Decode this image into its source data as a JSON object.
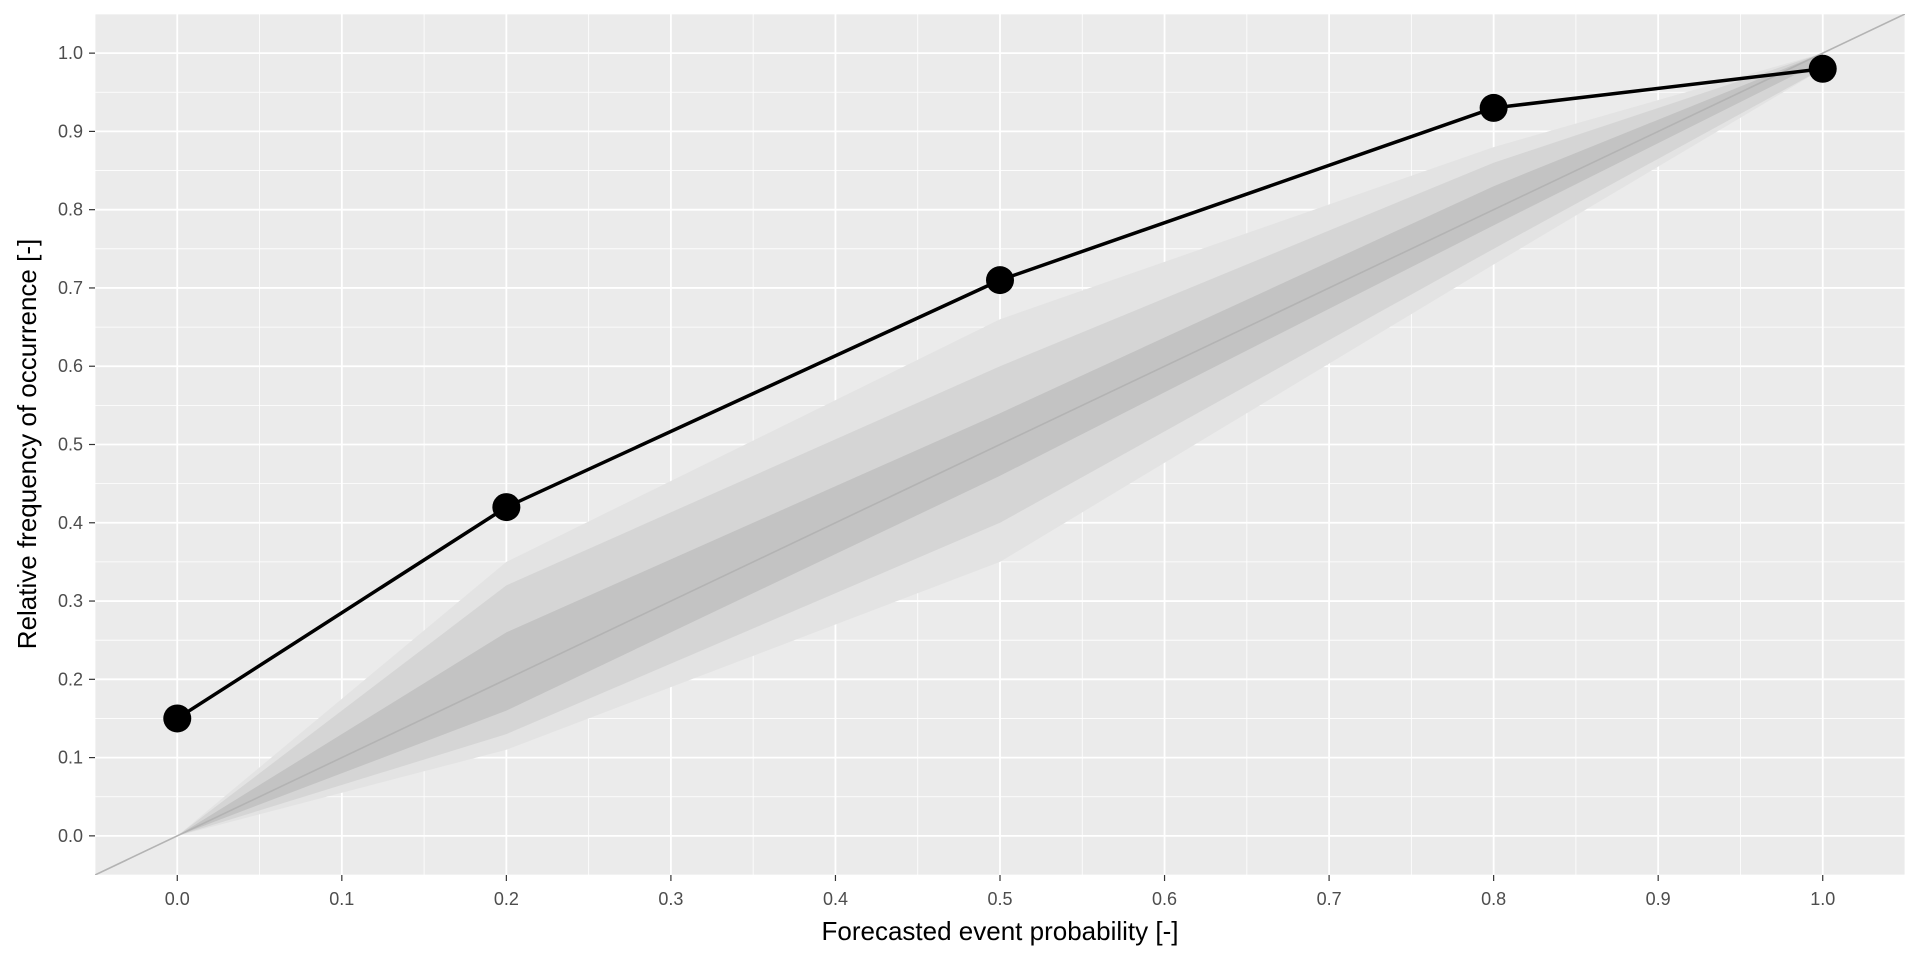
{
  "chart_data": {
    "type": "line",
    "title": "",
    "xlabel": "Forecasted event probability [-]",
    "ylabel": "Relative frequency of occurrence [-]",
    "xlim": [
      -0.05,
      1.05
    ],
    "ylim": [
      -0.05,
      1.05
    ],
    "x_ticks": [
      "0.0",
      "0.1",
      "0.2",
      "0.3",
      "0.4",
      "0.5",
      "0.6",
      "0.7",
      "0.8",
      "0.9",
      "1.0"
    ],
    "y_ticks": [
      "0.0",
      "0.1",
      "0.2",
      "0.3",
      "0.4",
      "0.5",
      "0.6",
      "0.7",
      "0.8",
      "0.9",
      "1.0"
    ],
    "grid": true,
    "series": [
      {
        "x": [
          0.0,
          0.2,
          0.5,
          0.8,
          1.0
        ],
        "y": [
          0.15,
          0.42,
          0.71,
          0.93,
          0.98
        ]
      }
    ],
    "diagonal_reference": true,
    "consistency_bands": [
      {
        "x": [
          0.0,
          0.2,
          0.5,
          0.8,
          1.0
        ],
        "lower": [
          0.0,
          0.11,
          0.35,
          0.73,
          0.98
        ],
        "upper": [
          0.0,
          0.35,
          0.66,
          0.88,
          1.0
        ]
      },
      {
        "x": [
          0.0,
          0.2,
          0.5,
          0.8,
          1.0
        ],
        "lower": [
          0.0,
          0.13,
          0.4,
          0.75,
          0.98
        ],
        "upper": [
          0.0,
          0.32,
          0.6,
          0.86,
          1.0
        ]
      },
      {
        "x": [
          0.0,
          0.2,
          0.5,
          0.8,
          1.0
        ],
        "lower": [
          0.0,
          0.16,
          0.46,
          0.78,
          0.99
        ],
        "upper": [
          0.0,
          0.26,
          0.54,
          0.83,
          1.0
        ]
      }
    ],
    "colors": {
      "panel": "#ebebeb",
      "grid": "#ffffff",
      "line": "#000000",
      "diagonal": "#b3b3b3",
      "bands": [
        "#e3e3e3",
        "#d5d5d5",
        "#c3c3c3"
      ]
    }
  }
}
